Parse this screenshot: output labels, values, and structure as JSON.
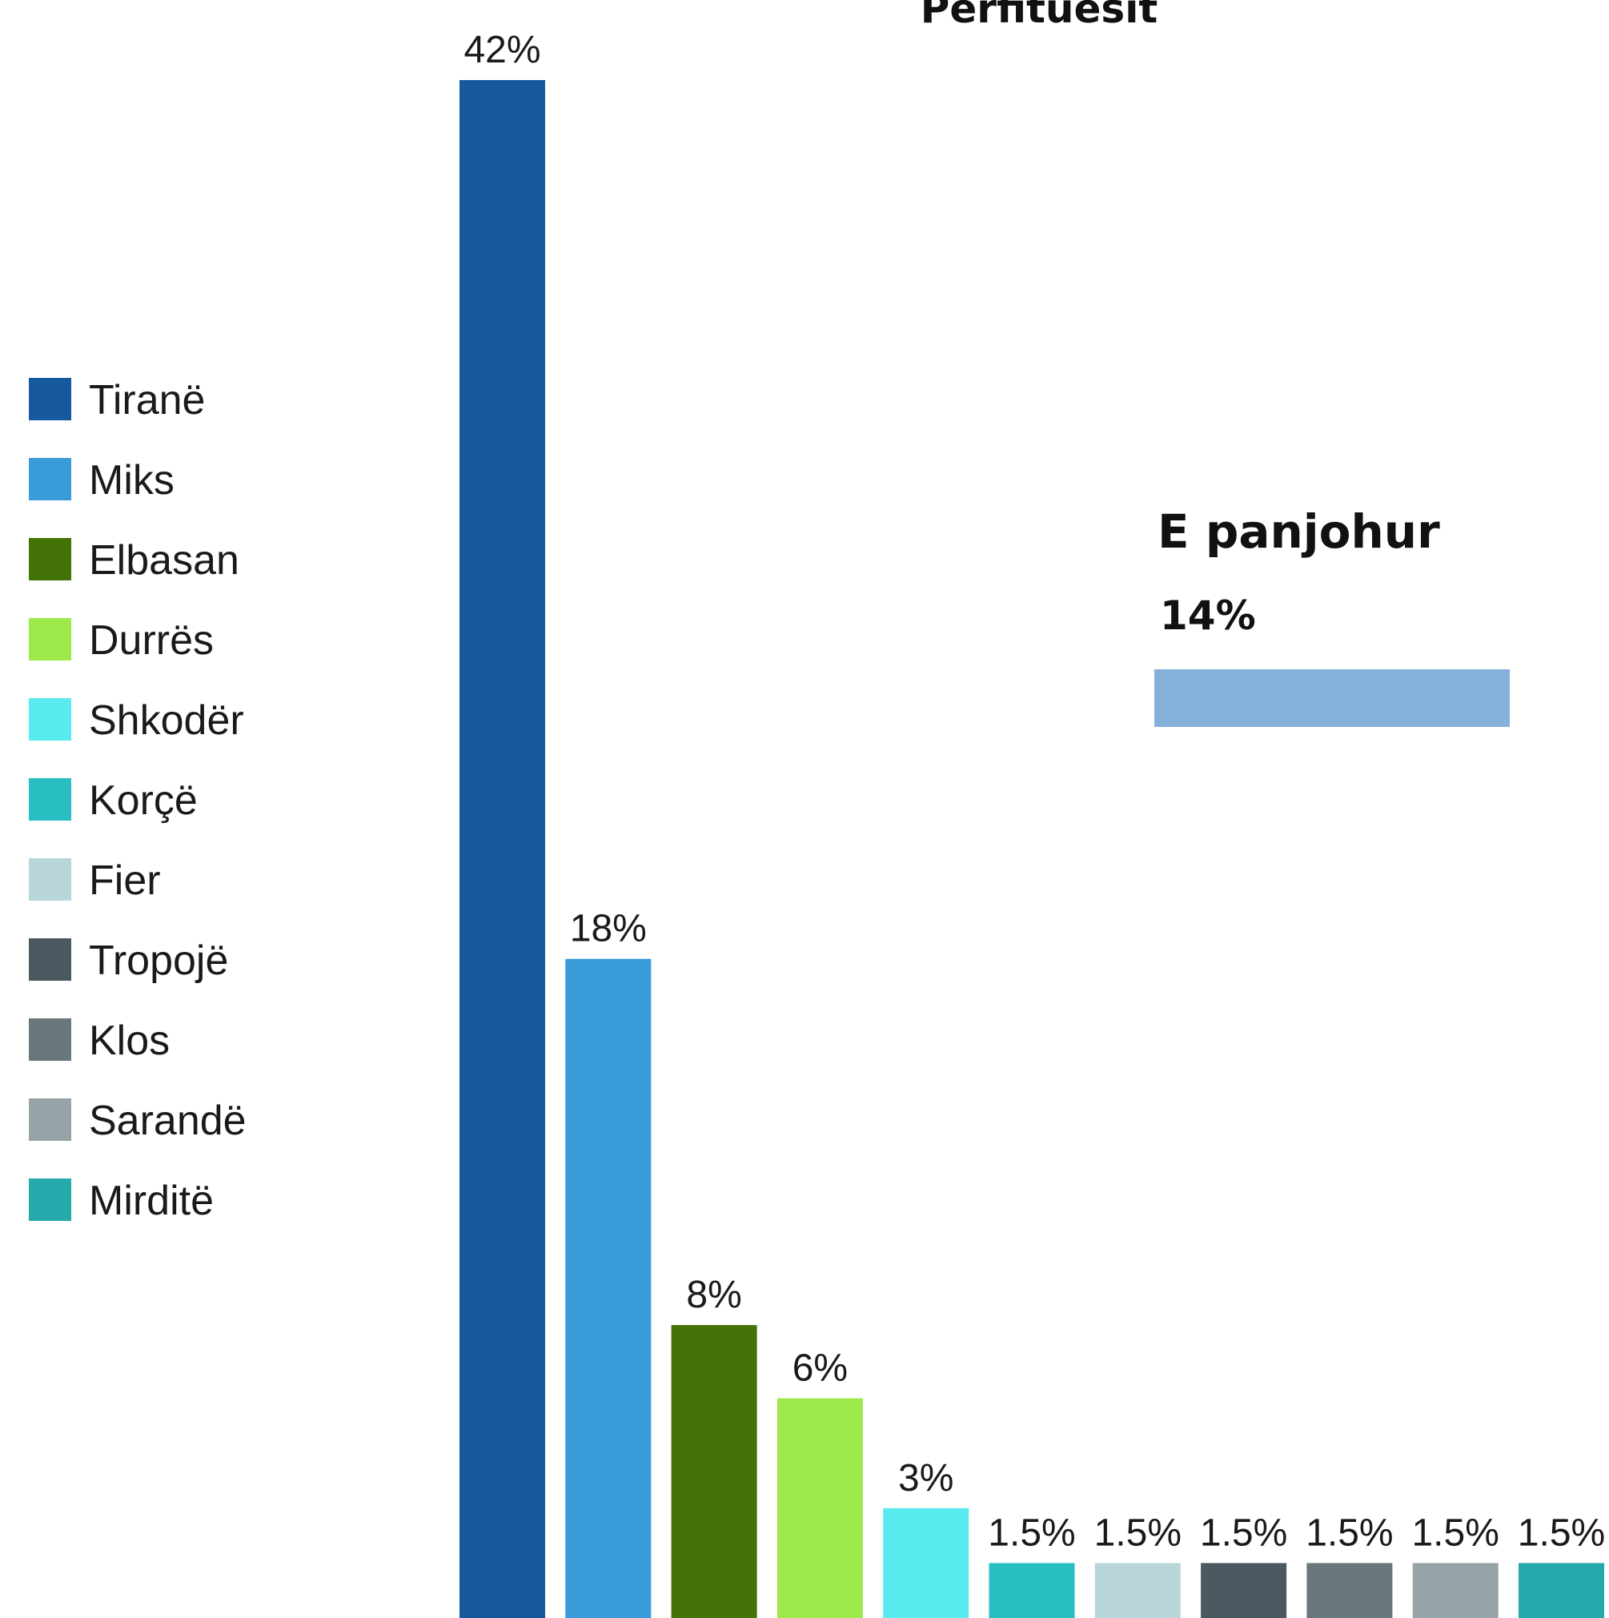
{
  "chart_data": {
    "type": "bar",
    "title": "Përfituesit",
    "categories": [
      "Tiranë",
      "Miks",
      "Elbasan",
      "Durrës",
      "Shkodër",
      "Korçë",
      "Fier",
      "Tropojë",
      "Klos",
      "Sarandë",
      "Mirditë"
    ],
    "values": [
      42,
      18,
      8,
      6,
      3,
      1.5,
      1.5,
      1.5,
      1.5,
      1.5,
      1.5
    ],
    "value_labels": [
      "42%",
      "18%",
      "8%",
      "6%",
      "3%",
      "1.5%",
      "1.5%",
      "1.5%",
      "1.5%",
      "1.5%",
      "1.5%"
    ],
    "colors": [
      "#17599f",
      "#3a9bdb",
      "#437207",
      "#9de84a",
      "#59eaf0",
      "#29bec2",
      "#b8d5da",
      "#4a5a60",
      "#68777b",
      "#97a3a7",
      "#26a9ab"
    ],
    "legend_position": "left",
    "ylim": [
      0,
      42
    ],
    "unknown": {
      "label": "E panjohur",
      "value": 14,
      "value_label": "14%",
      "color": "#84b0da"
    }
  }
}
